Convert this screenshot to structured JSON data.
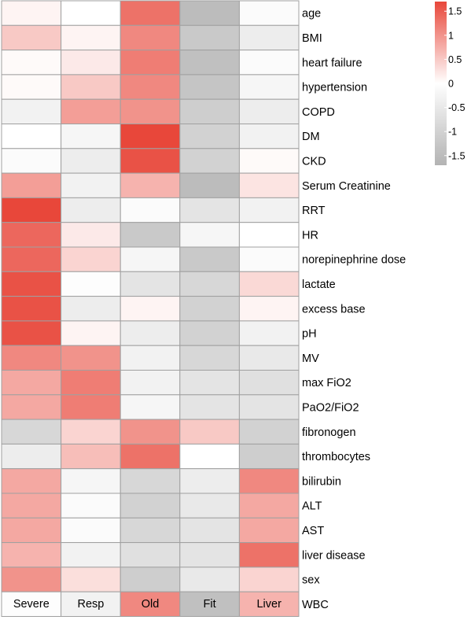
{
  "chart_data": {
    "type": "heatmap",
    "columns": [
      "Severe",
      "Resp",
      "Old",
      "Fit",
      "Liver"
    ],
    "rows": [
      "age",
      "BMI",
      "heart failure",
      "hypertension",
      "COPD",
      "DM",
      "CKD",
      "Serum Creatinine",
      "RRT",
      "HR",
      "norepinephrine dose",
      "lactate",
      "excess base",
      "pH",
      "MV",
      "max FiO2",
      "PaO2/FiO2",
      "fibronogen",
      "thrombocytes",
      "bilirubin",
      "ALT",
      "AST",
      "liver disease",
      "sex",
      "WBC"
    ],
    "values": [
      [
        0.1,
        0.0,
        1.3,
        -1.5,
        -0.1
      ],
      [
        0.5,
        0.1,
        1.1,
        -1.2,
        -0.4
      ],
      [
        0.05,
        0.2,
        1.2,
        -1.4,
        -0.1
      ],
      [
        0.05,
        0.5,
        1.1,
        -1.3,
        -0.2
      ],
      [
        -0.3,
        0.9,
        1.0,
        -1.1,
        -0.4
      ],
      [
        0.0,
        -0.2,
        1.7,
        -1.0,
        -0.3
      ],
      [
        -0.1,
        -0.4,
        1.6,
        -1.0,
        0.05
      ],
      [
        0.9,
        -0.3,
        0.7,
        -1.5,
        0.25
      ],
      [
        1.7,
        -0.4,
        -0.1,
        -0.6,
        -0.3
      ],
      [
        1.4,
        0.2,
        -1.2,
        -0.2,
        0.0
      ],
      [
        1.4,
        0.4,
        -0.2,
        -1.2,
        -0.1
      ],
      [
        1.6,
        -0.05,
        -0.6,
        -0.9,
        0.35
      ],
      [
        1.6,
        -0.4,
        0.1,
        -1.0,
        0.1
      ],
      [
        1.6,
        0.1,
        -0.4,
        -1.0,
        -0.3
      ],
      [
        1.1,
        1.0,
        -0.3,
        -0.9,
        -0.5
      ],
      [
        0.8,
        1.2,
        -0.3,
        -0.6,
        -0.7
      ],
      [
        0.8,
        1.2,
        -0.2,
        -0.6,
        -0.6
      ],
      [
        -0.9,
        0.4,
        1.0,
        0.5,
        -1.0
      ],
      [
        -0.4,
        0.6,
        1.3,
        0.0,
        -1.1
      ],
      [
        0.8,
        -0.2,
        -0.9,
        -0.4,
        1.1
      ],
      [
        0.8,
        -0.1,
        -1.0,
        -0.5,
        0.8
      ],
      [
        0.8,
        -0.1,
        -0.9,
        -0.6,
        0.8
      ],
      [
        0.7,
        -0.3,
        -0.7,
        -0.6,
        1.3
      ],
      [
        1.0,
        0.3,
        -1.1,
        -0.5,
        0.4
      ],
      [
        -0.05,
        -0.3,
        1.1,
        -1.4,
        0.7
      ]
    ],
    "color_scale": {
      "min": -1.7,
      "max": 1.7,
      "low_color": "#b3b3b3",
      "mid_color": "#ffffff",
      "high_color": "#e8473a",
      "ticks": [
        1.5,
        1,
        0.5,
        0,
        -0.5,
        -1,
        -1.5
      ],
      "tick_labels": [
        "1.5",
        "1",
        "0.5",
        "0",
        "-0.5",
        "-1",
        "-1.5"
      ]
    },
    "cell_border_color": "#a0a0a0",
    "legend_position": "top-right"
  }
}
